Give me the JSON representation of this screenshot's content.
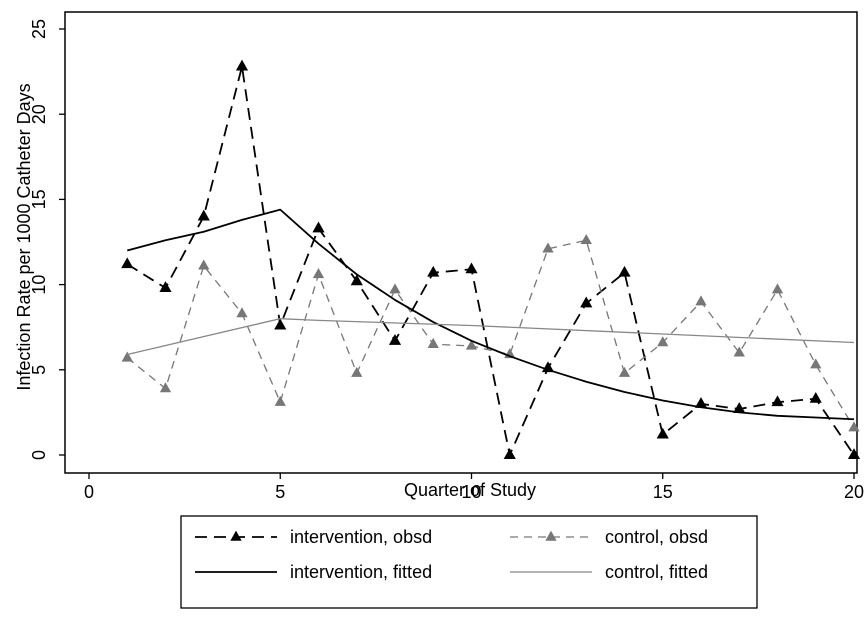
{
  "chart_data": {
    "type": "line",
    "title": "",
    "xlabel": "Quarter of Study",
    "ylabel": "Infection Rate per 1000 Catheter Days",
    "xlim": [
      0,
      20
    ],
    "ylim": [
      0,
      25
    ],
    "xticks": [
      0,
      5,
      10,
      15,
      20
    ],
    "xtick_labels": [
      "0",
      "5",
      "10",
      "15",
      "20"
    ],
    "yticks": [
      0,
      5,
      10,
      15,
      20,
      25
    ],
    "ytick_labels": [
      "0",
      "5",
      "10",
      "15",
      "20",
      "25"
    ],
    "grid": false,
    "legend_position": "bottom",
    "series": [
      {
        "name": "intervention, obsd",
        "style": "dashed",
        "marker": "triangle",
        "color": "#000000",
        "x": [
          1,
          2,
          3,
          4,
          5,
          6,
          7,
          8,
          9,
          10,
          11,
          12,
          13,
          14,
          15,
          16,
          17,
          18,
          19,
          20
        ],
        "y": [
          11.2,
          9.8,
          14.0,
          22.8,
          7.6,
          13.3,
          10.2,
          6.7,
          10.7,
          10.9,
          0.0,
          5.1,
          8.9,
          10.7,
          1.2,
          3.0,
          2.7,
          3.1,
          3.3,
          0.0
        ]
      },
      {
        "name": "control, obsd",
        "style": "dashed",
        "marker": "triangle",
        "color": "#777777",
        "x": [
          1,
          2,
          3,
          4,
          5,
          6,
          7,
          8,
          9,
          10,
          11,
          12,
          13,
          14,
          15,
          16,
          17,
          18,
          19,
          20
        ],
        "y": [
          5.7,
          3.9,
          11.1,
          8.3,
          3.1,
          10.6,
          4.8,
          9.7,
          6.5,
          6.4,
          5.9,
          12.1,
          12.6,
          4.8,
          6.6,
          9.0,
          6.0,
          9.7,
          5.3,
          1.6
        ]
      },
      {
        "name": "intervention, fitted",
        "style": "solid",
        "marker": "none",
        "color": "#000000",
        "x": [
          1,
          2,
          3,
          4,
          5,
          6,
          7,
          8,
          9,
          10,
          11,
          12,
          13,
          14,
          15,
          16,
          17,
          18,
          19,
          20
        ],
        "y": [
          12.0,
          12.6,
          13.1,
          13.8,
          14.4,
          12.4,
          10.6,
          9.1,
          7.8,
          6.7,
          5.8,
          5.0,
          4.3,
          3.7,
          3.2,
          2.8,
          2.5,
          2.3,
          2.2,
          2.1
        ]
      },
      {
        "name": "control, fitted",
        "style": "solid",
        "marker": "none",
        "color": "#888888",
        "x": [
          1,
          5,
          6,
          10,
          15,
          20
        ],
        "y": [
          5.9,
          8.0,
          7.9,
          7.6,
          7.1,
          6.6
        ]
      }
    ]
  }
}
